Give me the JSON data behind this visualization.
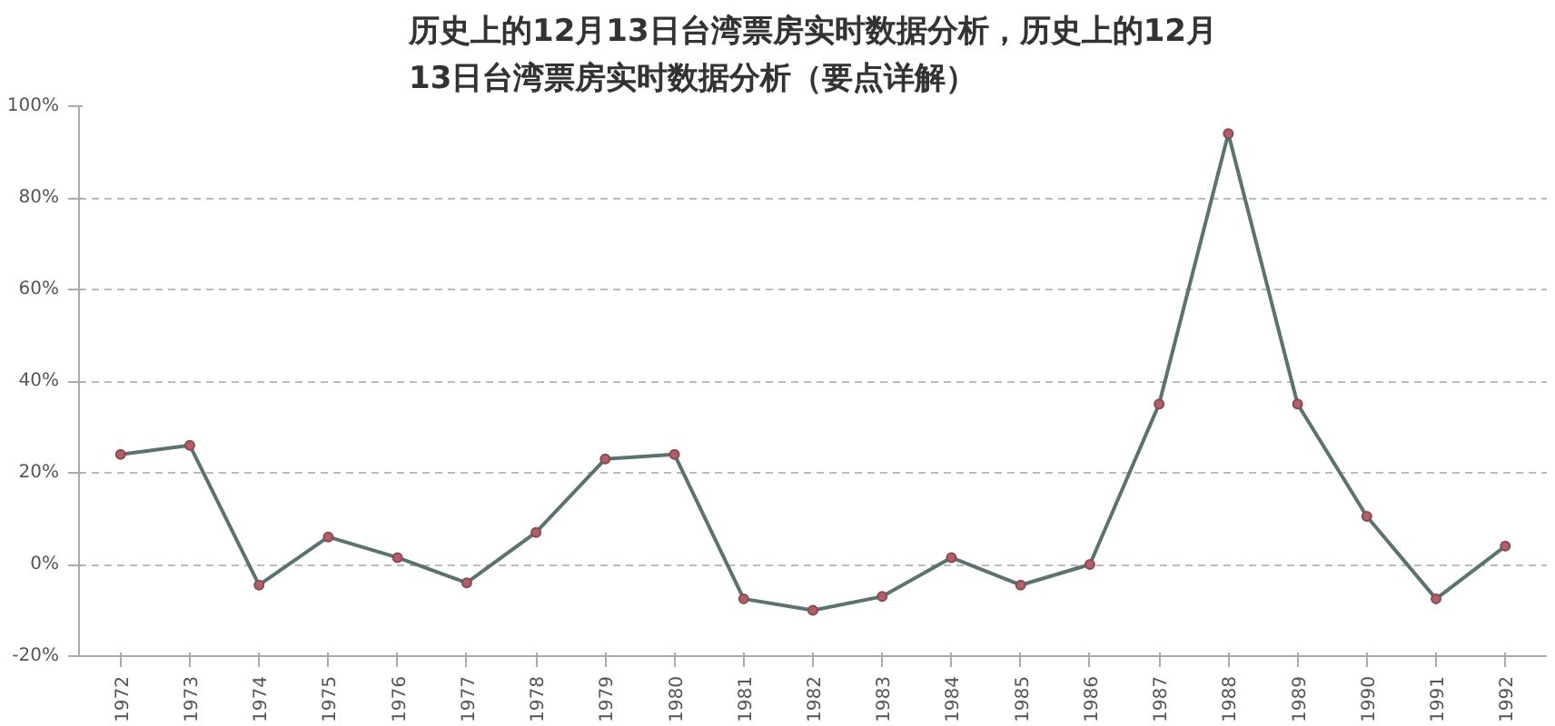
{
  "chart_data": {
    "type": "line",
    "title": "历史上的12月13日台湾票房实时数据分析，历史上的12月\n13日台湾票房实时数据分析（要点详解）",
    "categories": [
      "1972",
      "1973",
      "1974",
      "1975",
      "1976",
      "1977",
      "1978",
      "1979",
      "1980",
      "1981",
      "1982",
      "1983",
      "1984",
      "1985",
      "1986",
      "1987",
      "1988",
      "1989",
      "1990",
      "1991",
      "1992"
    ],
    "series": [
      {
        "color": "#5a7371",
        "values": [
          24,
          26,
          -4.5,
          6,
          1.5,
          -4,
          7,
          23,
          24,
          -7.5,
          -10,
          -7,
          1.5,
          -4.5,
          0,
          35,
          94,
          35,
          10.5,
          -7.5,
          4
        ]
      }
    ],
    "ylim": [
      -20,
      100
    ],
    "yticks": [
      {
        "value": -20,
        "label": "-20%"
      },
      {
        "value": 0,
        "label": "0%"
      },
      {
        "value": 20,
        "label": "20%"
      },
      {
        "value": 40,
        "label": "40%"
      },
      {
        "value": 60,
        "label": "60%"
      },
      {
        "value": 80,
        "label": "80%"
      },
      {
        "value": 100,
        "label": "100%"
      }
    ],
    "grid": "y",
    "marker": "circle",
    "line_style": "solid"
  }
}
